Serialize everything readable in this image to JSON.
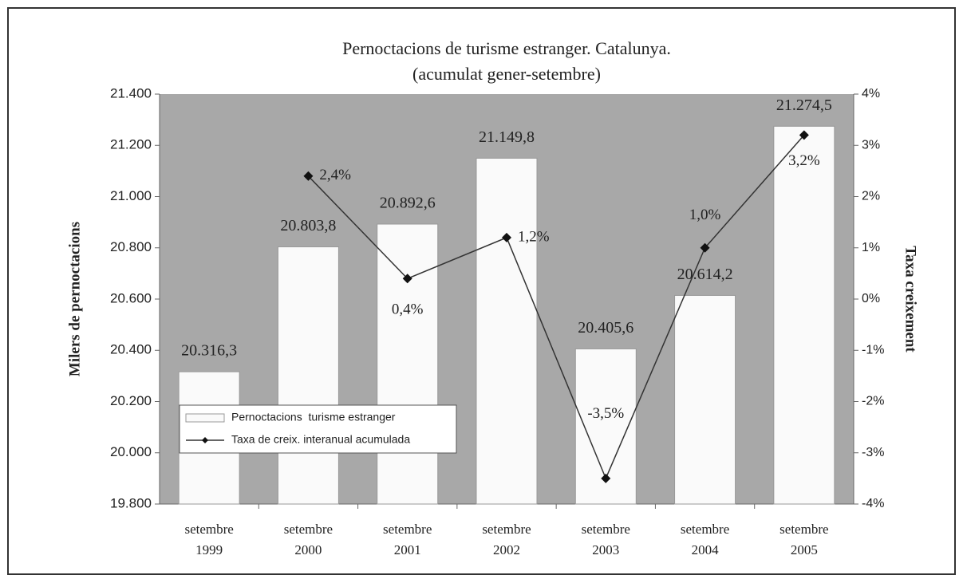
{
  "chart_data": {
    "type": "bar",
    "title": "Pernoctacions de turisme estranger. Catalunya.",
    "subtitle": "(acumulat gener-setembre)",
    "ylabel": "Milers de pernoctacions",
    "y2label": "Taxa creixement",
    "categories": [
      [
        "setembre",
        "1999"
      ],
      [
        "setembre",
        "2000"
      ],
      [
        "setembre",
        "2001"
      ],
      [
        "setembre",
        "2002"
      ],
      [
        "setembre",
        "2003"
      ],
      [
        "setembre",
        "2004"
      ],
      [
        "setembre",
        "2005"
      ]
    ],
    "series": [
      {
        "name": "Pernoctacions  turisme estranger",
        "type": "bar",
        "color": "#fafafa",
        "values": [
          20316.3,
          20803.8,
          20892.6,
          21149.8,
          20405.6,
          20614.2,
          21274.5
        ],
        "value_labels": [
          "20.316,3",
          "20.803,8",
          "20.892,6",
          "21.149,8",
          "20.405,6",
          "20.614,2",
          "21.274,5"
        ]
      },
      {
        "name": "Taxa de creix. interanual acumulada",
        "type": "line",
        "axis": "y2",
        "color": "#333333",
        "values": [
          null,
          2.4,
          0.4,
          1.2,
          -3.5,
          1.0,
          3.2
        ],
        "value_labels": [
          null,
          "2,4%",
          "0,4%",
          "1,2%",
          "-3,5%",
          "1,0%",
          "3,2%"
        ]
      }
    ],
    "ylim": [
      19800,
      21400
    ],
    "yticks": [
      {
        "value": 19800,
        "label": "19.800"
      },
      {
        "value": 20000,
        "label": "20.000"
      },
      {
        "value": 20200,
        "label": "20.200"
      },
      {
        "value": 20400,
        "label": "20.400"
      },
      {
        "value": 20600,
        "label": "20.600"
      },
      {
        "value": 20800,
        "label": "20.800"
      },
      {
        "value": 21000,
        "label": "21.000"
      },
      {
        "value": 21200,
        "label": "21.200"
      },
      {
        "value": 21400,
        "label": "21.400"
      }
    ],
    "y2lim": [
      -4,
      4
    ],
    "y2ticks": [
      {
        "value": -4,
        "label": "-4%"
      },
      {
        "value": -3,
        "label": "-3%"
      },
      {
        "value": -2,
        "label": "-2%"
      },
      {
        "value": -1,
        "label": "-1%"
      },
      {
        "value": 0,
        "label": "0%"
      },
      {
        "value": 1,
        "label": "1%"
      },
      {
        "value": 2,
        "label": "2%"
      },
      {
        "value": 3,
        "label": "3%"
      },
      {
        "value": 4,
        "label": "4%"
      }
    ],
    "plot_background": "#a8a8a8",
    "legend": "lower left"
  }
}
